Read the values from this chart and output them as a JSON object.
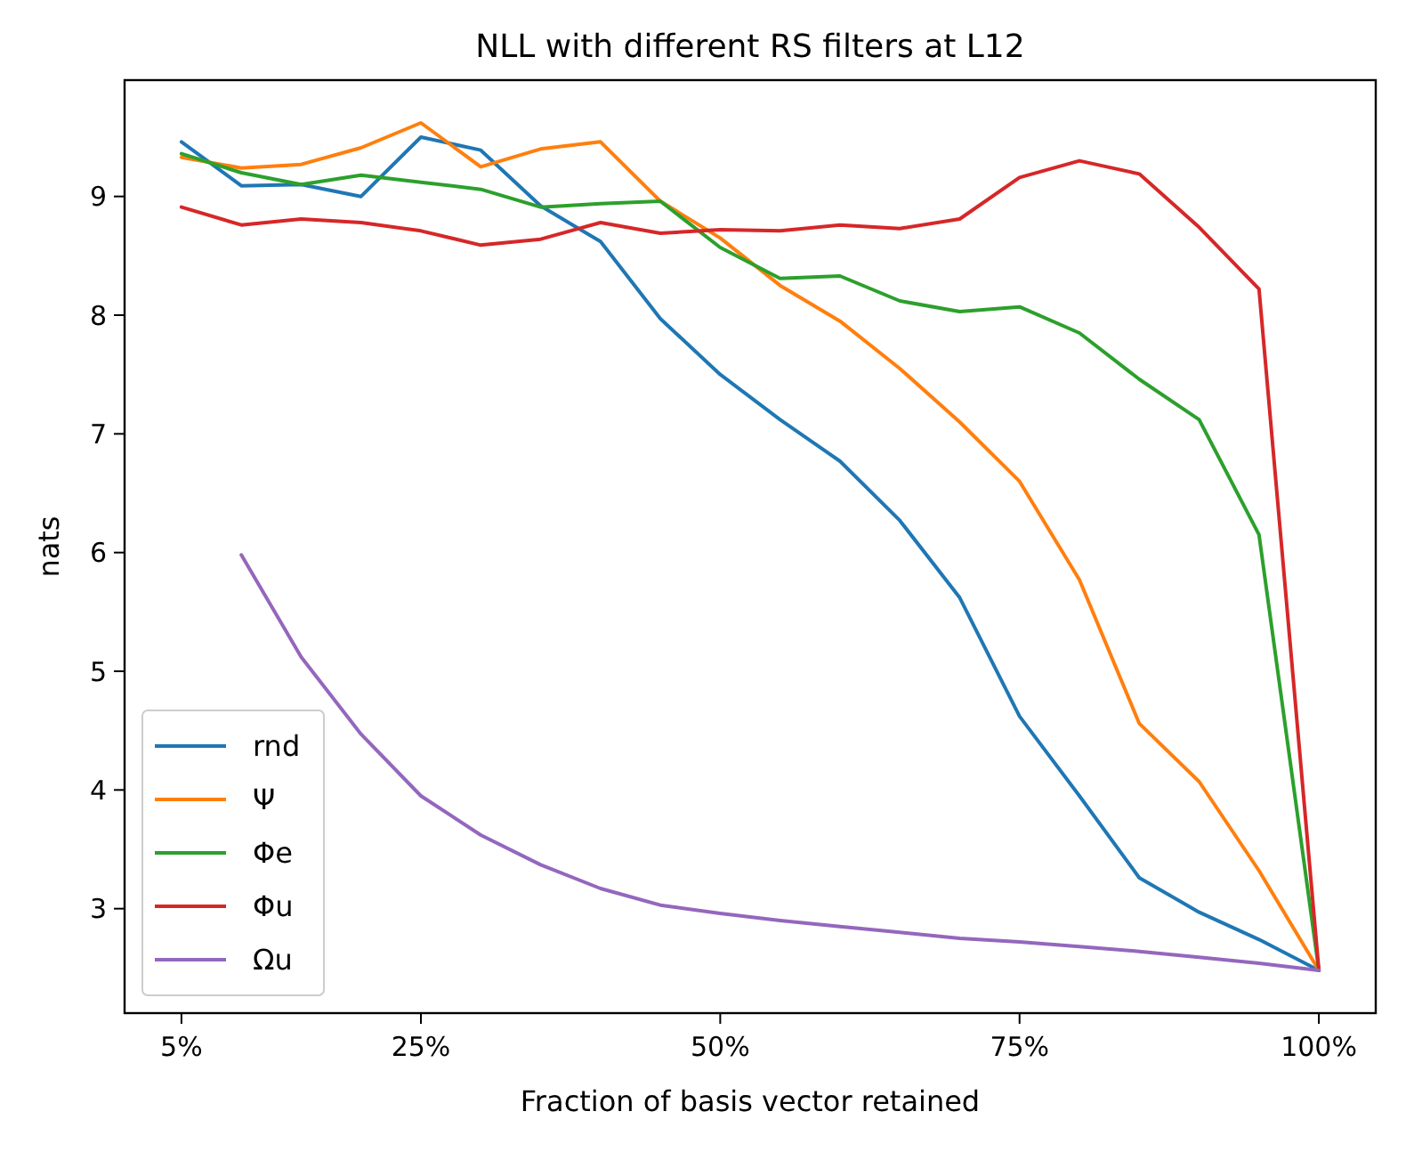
{
  "chart_data": {
    "type": "line",
    "title": "NLL with different RS filters at L12",
    "xlabel": "Fraction of basis vector retained",
    "ylabel": "nats",
    "x": [
      5,
      10,
      15,
      20,
      25,
      30,
      35,
      40,
      45,
      50,
      55,
      60,
      65,
      70,
      75,
      80,
      85,
      90,
      95,
      100
    ],
    "xlim": [
      0.25,
      104.75
    ],
    "ylim": [
      2.12,
      9.98
    ],
    "xticks": [
      {
        "value": 5,
        "label": "5%"
      },
      {
        "value": 25,
        "label": "25%"
      },
      {
        "value": 50,
        "label": "50%"
      },
      {
        "value": 75,
        "label": "75%"
      },
      {
        "value": 100,
        "label": "100%"
      }
    ],
    "yticks": [
      3,
      4,
      5,
      6,
      7,
      8,
      9
    ],
    "grid": false,
    "legend": "bottom left",
    "marker": "none",
    "line_style": "solid",
    "series": [
      {
        "name": "rnd",
        "color": "#1f77b4",
        "values": [
          9.46,
          9.09,
          9.1,
          9.0,
          9.5,
          9.39,
          8.92,
          8.62,
          7.97,
          7.5,
          7.12,
          6.77,
          6.27,
          5.62,
          4.62,
          3.95,
          3.26,
          2.97,
          2.74,
          2.48
        ]
      },
      {
        "name": "Ψ",
        "color": "#ff7f0e",
        "values": [
          9.33,
          9.24,
          9.27,
          9.41,
          9.62,
          9.25,
          9.4,
          9.46,
          8.96,
          8.65,
          8.25,
          7.95,
          7.55,
          7.1,
          6.6,
          5.77,
          4.56,
          4.07,
          3.32,
          2.48
        ]
      },
      {
        "name": "Φe",
        "color": "#2ca02c",
        "values": [
          9.36,
          9.2,
          9.1,
          9.18,
          9.12,
          9.06,
          8.91,
          8.94,
          8.96,
          8.57,
          8.31,
          8.33,
          8.12,
          8.03,
          8.07,
          7.85,
          7.46,
          7.12,
          6.15,
          2.48
        ]
      },
      {
        "name": "Φu",
        "color": "#d62728",
        "values": [
          8.91,
          8.76,
          8.81,
          8.78,
          8.71,
          8.59,
          8.64,
          8.78,
          8.69,
          8.72,
          8.71,
          8.76,
          8.73,
          8.81,
          9.16,
          9.3,
          9.19,
          8.74,
          8.22,
          2.48
        ]
      },
      {
        "name": "Ωu",
        "color": "#9467bd",
        "values": [
          null,
          5.98,
          5.12,
          4.47,
          3.95,
          3.62,
          3.37,
          3.17,
          3.03,
          2.96,
          2.9,
          2.85,
          2.8,
          2.75,
          2.72,
          2.68,
          2.64,
          2.59,
          2.54,
          2.48
        ]
      }
    ]
  }
}
